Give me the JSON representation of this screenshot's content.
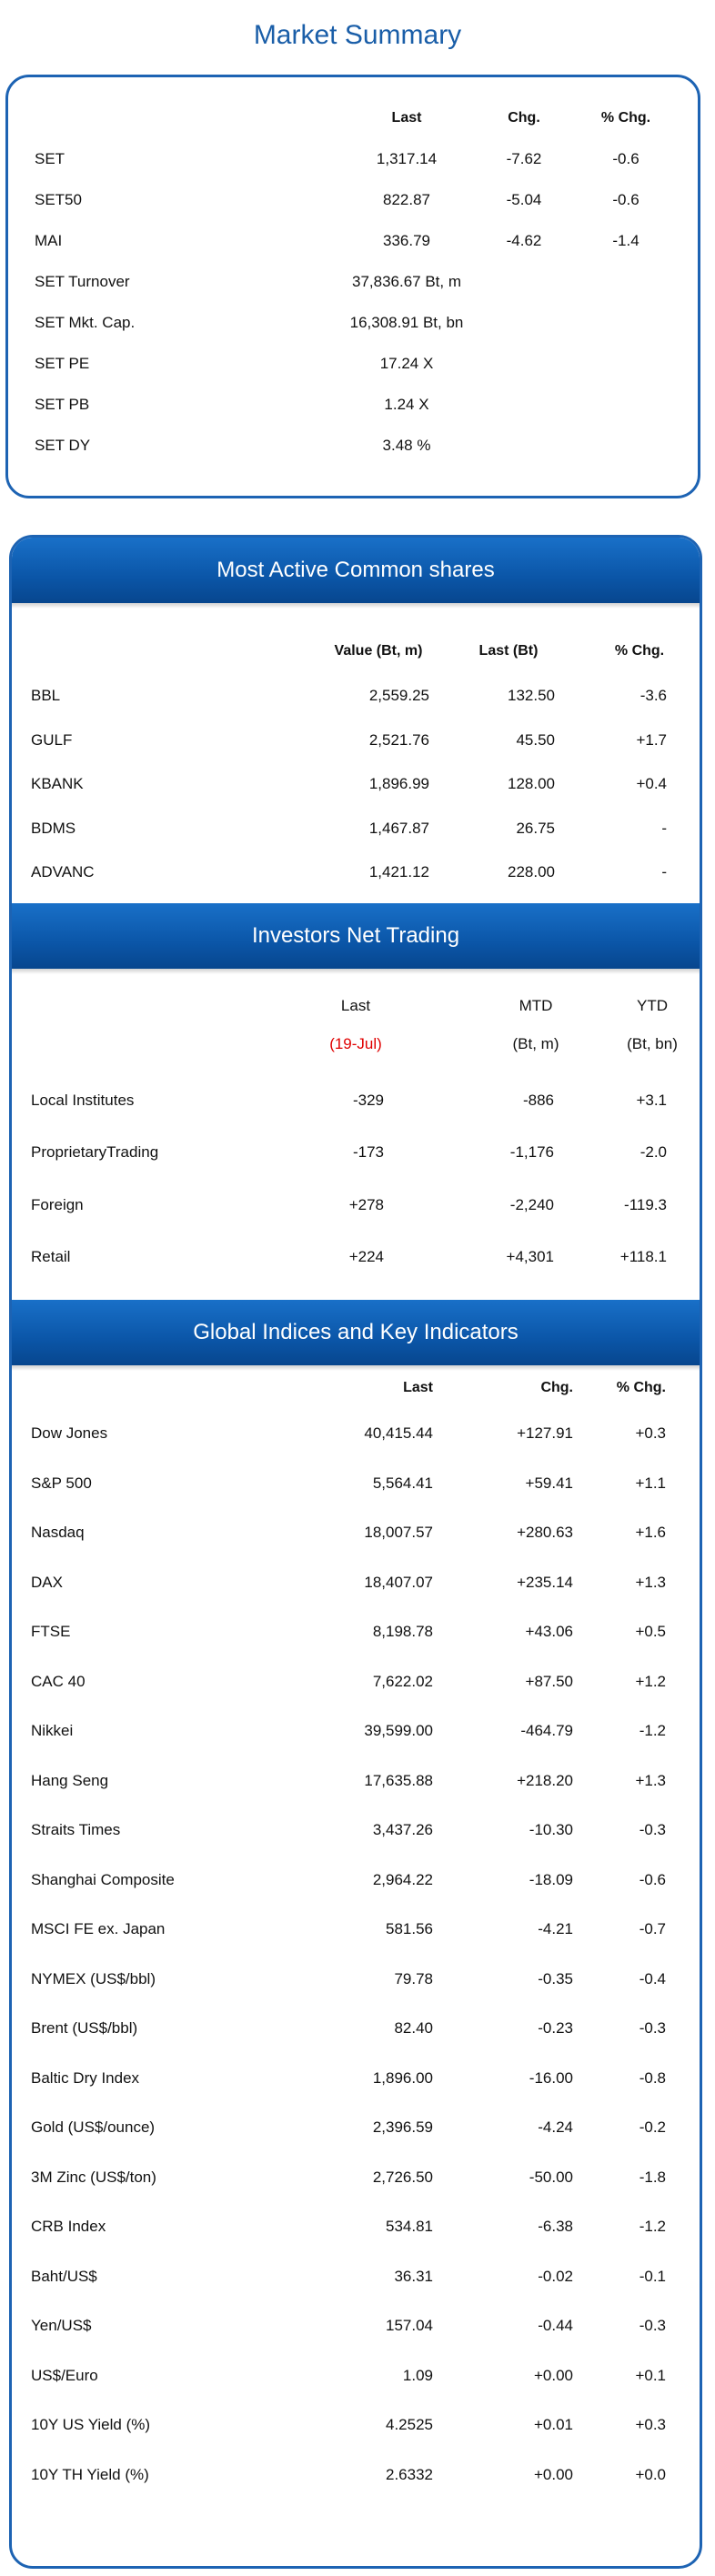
{
  "page_title": "Market Summary",
  "summary": {
    "headers": [
      "Last",
      "Chg.",
      "% Chg."
    ],
    "rows": [
      {
        "name": "SET",
        "last": "1,317.14",
        "chg": "-7.62",
        "pct": "-0.6"
      },
      {
        "name": "SET50",
        "last": "822.87",
        "chg": "-5.04",
        "pct": "-0.6"
      },
      {
        "name": "MAI",
        "last": "336.79",
        "chg": "-4.62",
        "pct": "-1.4"
      },
      {
        "name": "SET Turnover",
        "last": "37,836.67 Bt, m",
        "chg": "",
        "pct": ""
      },
      {
        "name": "SET Mkt. Cap.",
        "last": "16,308.91 Bt, bn",
        "chg": "",
        "pct": ""
      },
      {
        "name": "SET PE",
        "last": "17.24 X",
        "chg": "",
        "pct": ""
      },
      {
        "name": "SET PB",
        "last": "1.24 X",
        "chg": "",
        "pct": ""
      },
      {
        "name": "SET DY",
        "last": "3.48 %",
        "chg": "",
        "pct": ""
      }
    ]
  },
  "most_active": {
    "title": "Most Active Common shares",
    "headers": [
      "Value (Bt, m)",
      "Last (Bt)",
      "% Chg."
    ],
    "rows": [
      {
        "name": "BBL",
        "value": "2,559.25",
        "last": "132.50",
        "pct": "-3.6"
      },
      {
        "name": "GULF",
        "value": "2,521.76",
        "last": "45.50",
        "pct": "+1.7"
      },
      {
        "name": "KBANK",
        "value": "1,896.99",
        "last": "128.00",
        "pct": "+0.4"
      },
      {
        "name": "BDMS",
        "value": "1,467.87",
        "last": "26.75",
        "pct": "-"
      },
      {
        "name": "ADVANC",
        "value": "1,421.12",
        "last": "228.00",
        "pct": "-"
      }
    ]
  },
  "investors": {
    "title": "Investors Net Trading",
    "headers": [
      "Last",
      "MTD",
      "YTD"
    ],
    "subheaders": [
      "(19-Jul)",
      "(Bt, m)",
      "(Bt, bn)"
    ],
    "rows": [
      {
        "name": "Local Institutes",
        "last": "-329",
        "mtd": "-886",
        "ytd": "+3.1"
      },
      {
        "name": "ProprietaryTrading",
        "last": "-173",
        "mtd": "-1,176",
        "ytd": "-2.0"
      },
      {
        "name": "Foreign",
        "last": "+278",
        "mtd": "-2,240",
        "ytd": "-119.3"
      },
      {
        "name": "Retail",
        "last": "+224",
        "mtd": "+4,301",
        "ytd": "+118.1"
      }
    ]
  },
  "global": {
    "title": "Global Indices and Key Indicators",
    "headers": [
      "Last",
      "Chg.",
      "% Chg."
    ],
    "rows": [
      {
        "name": "Dow Jones",
        "last": "40,415.44",
        "chg": "+127.91",
        "pct": "+0.3"
      },
      {
        "name": "S&P 500",
        "last": "5,564.41",
        "chg": "+59.41",
        "pct": "+1.1"
      },
      {
        "name": "Nasdaq",
        "last": "18,007.57",
        "chg": "+280.63",
        "pct": "+1.6"
      },
      {
        "name": "DAX",
        "last": "18,407.07",
        "chg": "+235.14",
        "pct": "+1.3"
      },
      {
        "name": "FTSE",
        "last": "8,198.78",
        "chg": "+43.06",
        "pct": "+0.5"
      },
      {
        "name": "CAC 40",
        "last": "7,622.02",
        "chg": "+87.50",
        "pct": "+1.2"
      },
      {
        "name": "Nikkei",
        "last": "39,599.00",
        "chg": "-464.79",
        "pct": "-1.2"
      },
      {
        "name": "Hang Seng",
        "last": "17,635.88",
        "chg": "+218.20",
        "pct": "+1.3"
      },
      {
        "name": "Straits Times",
        "last": "3,437.26",
        "chg": "-10.30",
        "pct": "-0.3"
      },
      {
        "name": "Shanghai Composite",
        "last": "2,964.22",
        "chg": "-18.09",
        "pct": "-0.6"
      },
      {
        "name": "MSCI FE ex. Japan",
        "last": "581.56",
        "chg": "-4.21",
        "pct": "-0.7"
      },
      {
        "name": "NYMEX (US$/bbl)",
        "last": "79.78",
        "chg": "-0.35",
        "pct": "-0.4"
      },
      {
        "name": "Brent (US$/bbl)",
        "last": "82.40",
        "chg": "-0.23",
        "pct": "-0.3"
      },
      {
        "name": "Baltic Dry Index",
        "last": "1,896.00",
        "chg": "-16.00",
        "pct": "-0.8"
      },
      {
        "name": "Gold (US$/ounce)",
        "last": "2,396.59",
        "chg": "-4.24",
        "pct": "-0.2"
      },
      {
        "name": "3M Zinc (US$/ton)",
        "last": "2,726.50",
        "chg": "-50.00",
        "pct": "-1.8"
      },
      {
        "name": "CRB Index",
        "last": "534.81",
        "chg": "-6.38",
        "pct": "-1.2"
      },
      {
        "name": "Baht/US$",
        "last": "36.31",
        "chg": "-0.02",
        "pct": "-0.1"
      },
      {
        "name": "Yen/US$",
        "last": "157.04",
        "chg": "-0.44",
        "pct": "-0.3"
      },
      {
        "name": "US$/Euro",
        "last": "1.09",
        "chg": "+0.00",
        "pct": "+0.1"
      },
      {
        "name": "10Y US Yield (%)",
        "last": "4.2525",
        "chg": "+0.01",
        "pct": "+0.3"
      },
      {
        "name": "10Y TH Yield (%)",
        "last": "2.6332",
        "chg": "+0.00",
        "pct": "+0.0"
      }
    ]
  }
}
